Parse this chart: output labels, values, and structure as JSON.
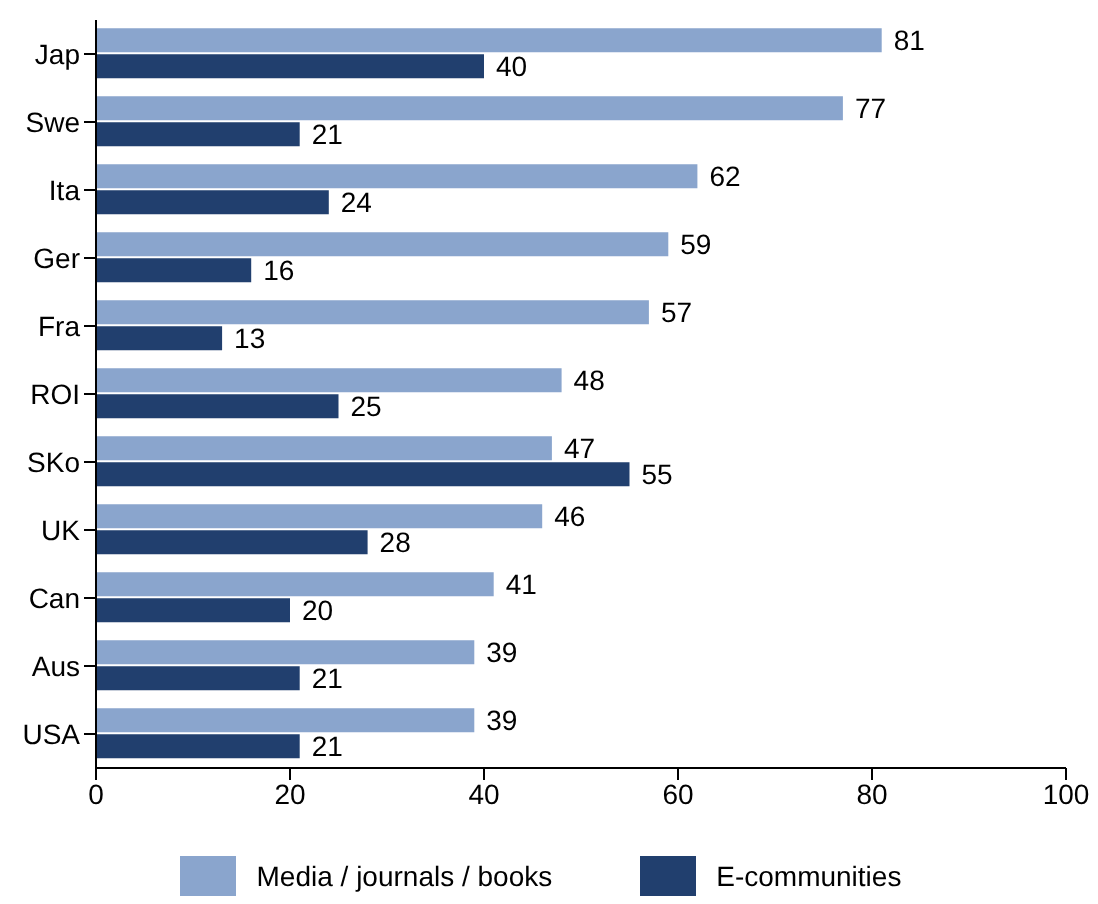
{
  "chart_data": {
    "type": "bar",
    "orientation": "horizontal",
    "categories": [
      "Jap",
      "Swe",
      "Ita",
      "Ger",
      "Fra",
      "ROI",
      "SKo",
      "UK",
      "Can",
      "Aus",
      "USA"
    ],
    "series": [
      {
        "name": "Media / journals / books",
        "color": "#8aa5cd",
        "values": [
          81,
          77,
          62,
          59,
          57,
          48,
          47,
          46,
          41,
          39,
          39
        ]
      },
      {
        "name": "E-communities",
        "color": "#213f6e",
        "values": [
          40,
          21,
          24,
          16,
          13,
          25,
          55,
          28,
          20,
          21,
          21
        ]
      }
    ],
    "xlim": [
      0,
      100
    ],
    "xticks": [
      0,
      20,
      40,
      60,
      80,
      100
    ],
    "data_labels": true,
    "legend": "bottom",
    "grid": false
  }
}
